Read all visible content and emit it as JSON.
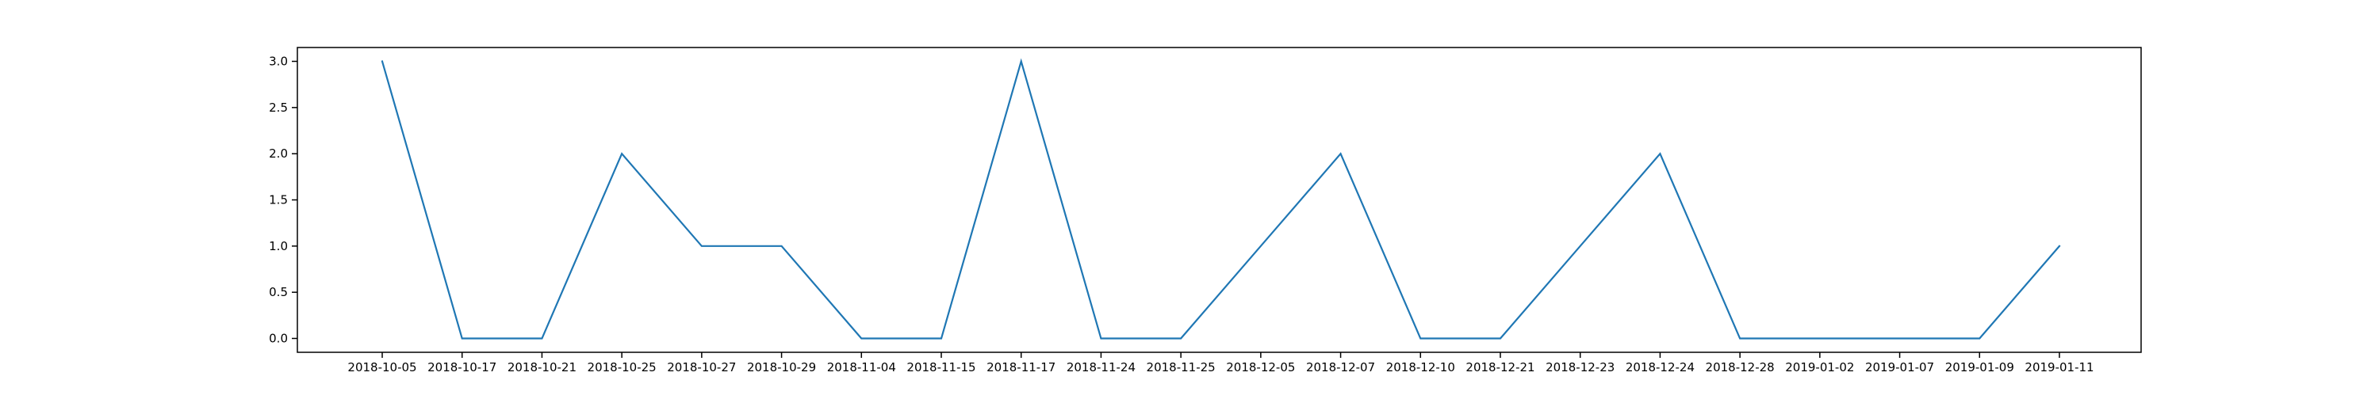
{
  "chart_data": {
    "type": "line",
    "title": "",
    "xlabel": "",
    "ylabel": "",
    "categories": [
      "2018-10-05",
      "2018-10-17",
      "2018-10-21",
      "2018-10-25",
      "2018-10-27",
      "2018-10-29",
      "2018-11-04",
      "2018-11-15",
      "2018-11-17",
      "2018-11-24",
      "2018-11-25",
      "2018-12-05",
      "2018-12-07",
      "2018-12-10",
      "2018-12-21",
      "2018-12-23",
      "2018-12-24",
      "2018-12-28",
      "2019-01-02",
      "2019-01-07",
      "2019-01-09",
      "2019-01-11"
    ],
    "series": [
      {
        "values": [
          3,
          0,
          0,
          2,
          1,
          1,
          0,
          0,
          3,
          0,
          0,
          1,
          2,
          0,
          0,
          1,
          2,
          0,
          0,
          0,
          0,
          1
        ],
        "color": "#1f77b4"
      }
    ],
    "ylim": [
      -0.15,
      3.15
    ],
    "yticks": [
      "0.0",
      "0.5",
      "1.0",
      "1.5",
      "2.0",
      "2.5",
      "3.0"
    ],
    "grid": false,
    "legend": "none"
  }
}
